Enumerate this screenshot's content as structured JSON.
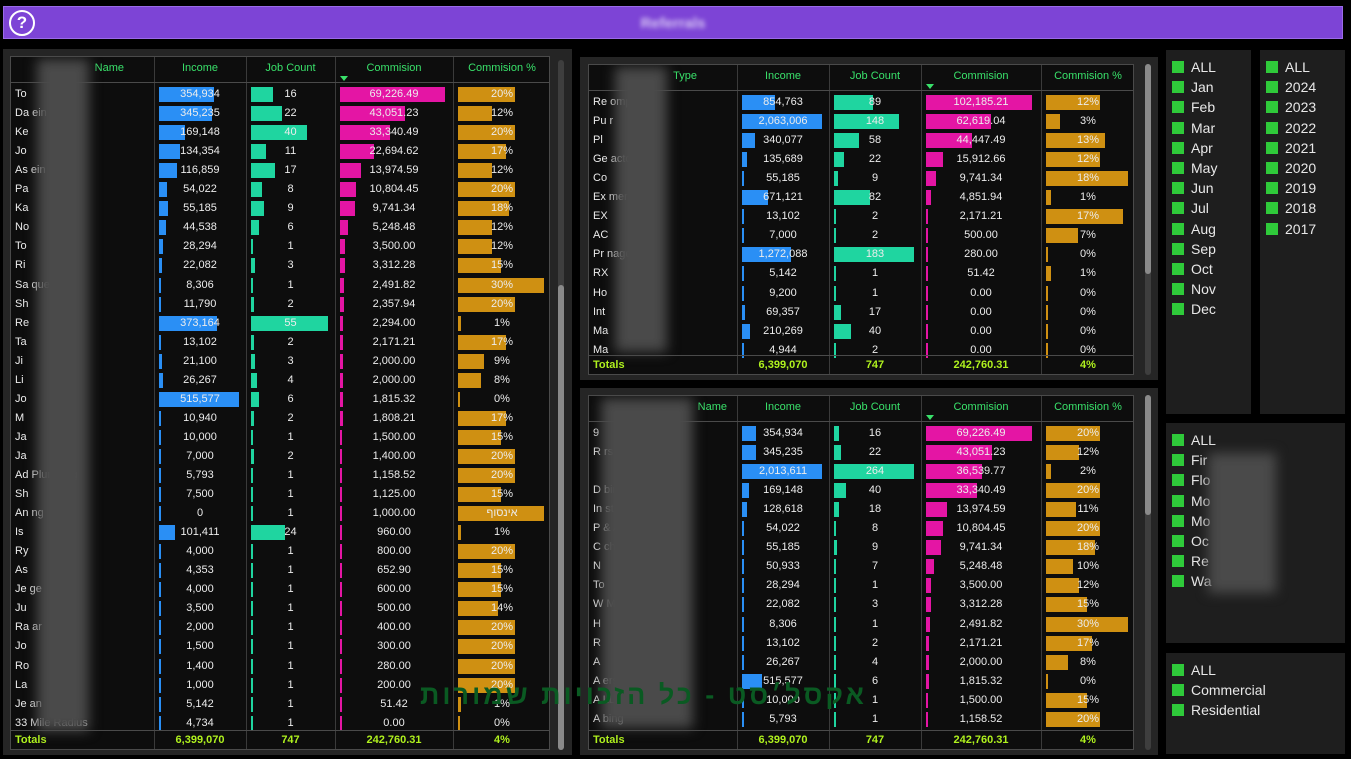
{
  "header": {
    "help_icon": "?",
    "title": "Referrals"
  },
  "columns": {
    "name": "Name",
    "type": "Type",
    "income": "Income",
    "job_count": "Job Count",
    "commission": "Commision",
    "commission_pct": "Commision %",
    "totals": "Totals"
  },
  "colors": {
    "income": "#2a8ff5",
    "job_count": "#1fd5a0",
    "commission": "#e415a4",
    "commission_pct": "#cf9012",
    "title_bar": "#7d44d6",
    "totals_text": "#b0f21e",
    "header_text": "#39e06a"
  },
  "table_left": {
    "label_header": "Name",
    "rows": [
      {
        "label": "To",
        "income": "354,934",
        "job_count": "16",
        "commission": "69,226.49",
        "pct": "20%"
      },
      {
        "label": "Da              ein",
        "income": "345,235",
        "job_count": "22",
        "commission": "43,051.23",
        "pct": "12%"
      },
      {
        "label": "Ke",
        "income": "169,148",
        "job_count": "40",
        "commission": "33,340.49",
        "pct": "20%"
      },
      {
        "label": "Jo",
        "income": "134,354",
        "job_count": "11",
        "commission": "22,694.62",
        "pct": "17%"
      },
      {
        "label": "As              ein",
        "income": "116,859",
        "job_count": "17",
        "commission": "13,974.59",
        "pct": "12%"
      },
      {
        "label": "Pa",
        "income": "54,022",
        "job_count": "8",
        "commission": "10,804.45",
        "pct": "20%"
      },
      {
        "label": "Ka",
        "income": "55,185",
        "job_count": "9",
        "commission": "9,741.34",
        "pct": "18%"
      },
      {
        "label": "No",
        "income": "44,538",
        "job_count": "6",
        "commission": "5,248.48",
        "pct": "12%"
      },
      {
        "label": "To",
        "income": "28,294",
        "job_count": "1",
        "commission": "3,500.00",
        "pct": "12%"
      },
      {
        "label": "Ri",
        "income": "22,082",
        "job_count": "3",
        "commission": "3,312.28",
        "pct": "15%"
      },
      {
        "label": "Sa              que",
        "income": "8,306",
        "job_count": "1",
        "commission": "2,491.82",
        "pct": "30%"
      },
      {
        "label": "Sh",
        "income": "11,790",
        "job_count": "2",
        "commission": "2,357.94",
        "pct": "20%"
      },
      {
        "label": "Re",
        "income": "373,164",
        "job_count": "55",
        "commission": "2,294.00",
        "pct": "1%"
      },
      {
        "label": "Ta",
        "income": "13,102",
        "job_count": "2",
        "commission": "2,171.21",
        "pct": "17%"
      },
      {
        "label": "Ji",
        "income": "21,100",
        "job_count": "3",
        "commission": "2,000.00",
        "pct": "9%"
      },
      {
        "label": "Li",
        "income": "26,267",
        "job_count": "4",
        "commission": "2,000.00",
        "pct": "8%"
      },
      {
        "label": "Jo",
        "income": "515,577",
        "job_count": "6",
        "commission": "1,815.32",
        "pct": "0%"
      },
      {
        "label": "M",
        "income": "10,940",
        "job_count": "2",
        "commission": "1,808.21",
        "pct": "17%"
      },
      {
        "label": "Ja",
        "income": "10,000",
        "job_count": "1",
        "commission": "1,500.00",
        "pct": "15%"
      },
      {
        "label": "Ja",
        "income": "7,000",
        "job_count": "2",
        "commission": "1,400.00",
        "pct": "20%"
      },
      {
        "label": "Ad              Plumbing",
        "income": "5,793",
        "job_count": "1",
        "commission": "1,158.52",
        "pct": "20%"
      },
      {
        "label": "Sh",
        "income": "7,500",
        "job_count": "1",
        "commission": "1,125.00",
        "pct": "15%"
      },
      {
        "label": "An              ng",
        "income": "0",
        "job_count": "1",
        "commission": "1,000.00",
        "pct": "אינסוף"
      },
      {
        "label": "Is",
        "income": "101,411",
        "job_count": "24",
        "commission": "960.00",
        "pct": "1%"
      },
      {
        "label": "Ry",
        "income": "4,000",
        "job_count": "1",
        "commission": "800.00",
        "pct": "20%"
      },
      {
        "label": "As",
        "income": "4,353",
        "job_count": "1",
        "commission": "652.90",
        "pct": "15%"
      },
      {
        "label": "Je              ge",
        "income": "4,000",
        "job_count": "1",
        "commission": "600.00",
        "pct": "15%"
      },
      {
        "label": "Ju",
        "income": "3,500",
        "job_count": "1",
        "commission": "500.00",
        "pct": "14%"
      },
      {
        "label": "Ra              ar",
        "income": "2,000",
        "job_count": "1",
        "commission": "400.00",
        "pct": "20%"
      },
      {
        "label": "Jo",
        "income": "1,500",
        "job_count": "1",
        "commission": "300.00",
        "pct": "20%"
      },
      {
        "label": "Ro",
        "income": "1,400",
        "job_count": "1",
        "commission": "280.00",
        "pct": "20%"
      },
      {
        "label": "La",
        "income": "1,000",
        "job_count": "1",
        "commission": "200.00",
        "pct": "20%"
      },
      {
        "label": "Je              an",
        "income": "5,142",
        "job_count": "1",
        "commission": "51.42",
        "pct": "1%"
      },
      {
        "label": "33 Mile Radius",
        "income": "4,734",
        "job_count": "1",
        "commission": "0.00",
        "pct": "0%"
      }
    ],
    "totals": {
      "label": "Totals",
      "income": "6,399,070",
      "job_count": "747",
      "commission": "242,760.31",
      "pct": "4%"
    }
  },
  "table_type": {
    "label_header": "Type",
    "rows": [
      {
        "label": "Re              ompany",
        "income": "854,763",
        "job_count": "89",
        "commission": "102,185.21",
        "pct": "12%"
      },
      {
        "label": "Pu              r",
        "income": "2,063,006",
        "job_count": "148",
        "commission": "62,619.04",
        "pct": "3%"
      },
      {
        "label": "Pl",
        "income": "340,077",
        "job_count": "58",
        "commission": "44,447.49",
        "pct": "13%"
      },
      {
        "label": "Ge              actor",
        "income": "135,689",
        "job_count": "22",
        "commission": "15,912.66",
        "pct": "12%"
      },
      {
        "label": "Co",
        "income": "55,185",
        "job_count": "9",
        "commission": "9,741.34",
        "pct": "18%"
      },
      {
        "label": "Ex              mer",
        "income": "671,121",
        "job_count": "82",
        "commission": "4,851.94",
        "pct": "1%"
      },
      {
        "label": "EX",
        "income": "13,102",
        "job_count": "2",
        "commission": "2,171.21",
        "pct": "17%"
      },
      {
        "label": "AC",
        "income": "7,000",
        "job_count": "2",
        "commission": "500.00",
        "pct": "7%"
      },
      {
        "label": "Pr              nager",
        "income": "1,272,088",
        "job_count": "183",
        "commission": "280.00",
        "pct": "0%"
      },
      {
        "label": "RX",
        "income": "5,142",
        "job_count": "1",
        "commission": "51.42",
        "pct": "1%"
      },
      {
        "label": "Ho",
        "income": "9,200",
        "job_count": "1",
        "commission": "0.00",
        "pct": "0%"
      },
      {
        "label": "Int",
        "income": "69,357",
        "job_count": "17",
        "commission": "0.00",
        "pct": "0%"
      },
      {
        "label": "Ma",
        "income": "210,269",
        "job_count": "40",
        "commission": "0.00",
        "pct": "0%"
      },
      {
        "label": "Ma",
        "income": "4,944",
        "job_count": "2",
        "commission": "0.00",
        "pct": "0%"
      }
    ],
    "totals": {
      "label": "Totals",
      "income": "6,399,070",
      "job_count": "747",
      "commission": "242,760.31",
      "pct": "4%"
    }
  },
  "table_group": {
    "label_header": "Name",
    "rows": [
      {
        "label": "9",
        "income": "354,934",
        "job_count": "16",
        "commission": "69,226.49",
        "pct": "20%"
      },
      {
        "label": "R              rs",
        "income": "345,235",
        "job_count": "22",
        "commission": "43,051.23",
        "pct": "12%"
      },
      {
        "label": "",
        "income": "2,013,611",
        "job_count": "264",
        "commission": "36,539.77",
        "pct": "2%"
      },
      {
        "label": "D              bing",
        "income": "169,148",
        "job_count": "40",
        "commission": "33,340.49",
        "pct": "20%"
      },
      {
        "label": "In              sters",
        "income": "128,618",
        "job_count": "18",
        "commission": "13,974.59",
        "pct": "11%"
      },
      {
        "label": "P              & Ass...",
        "income": "54,022",
        "job_count": "8",
        "commission": "10,804.45",
        "pct": "20%"
      },
      {
        "label": "C              cher",
        "income": "55,185",
        "job_count": "9",
        "commission": "9,741.34",
        "pct": "18%"
      },
      {
        "label": "N",
        "income": "50,933",
        "job_count": "7",
        "commission": "5,248.48",
        "pct": "10%"
      },
      {
        "label": "To",
        "income": "28,294",
        "job_count": "1",
        "commission": "3,500.00",
        "pct": "12%"
      },
      {
        "label": "W              Marke...",
        "income": "22,082",
        "job_count": "3",
        "commission": "3,312.28",
        "pct": "15%"
      },
      {
        "label": "H",
        "income": "8,306",
        "job_count": "1",
        "commission": "2,491.82",
        "pct": "30%"
      },
      {
        "label": "R",
        "income": "13,102",
        "job_count": "2",
        "commission": "2,171.21",
        "pct": "17%"
      },
      {
        "label": "A",
        "income": "26,267",
        "job_count": "4",
        "commission": "2,000.00",
        "pct": "8%"
      },
      {
        "label": "A              ers",
        "income": "515,577",
        "job_count": "6",
        "commission": "1,815.32",
        "pct": "0%"
      },
      {
        "label": "A              LLC",
        "income": "10,000",
        "job_count": "1",
        "commission": "1,500.00",
        "pct": "15%"
      },
      {
        "label": "A              bing",
        "income": "5,793",
        "job_count": "1",
        "commission": "1,158.52",
        "pct": "20%"
      }
    ],
    "totals": {
      "label": "Totals",
      "income": "6,399,070",
      "job_count": "747",
      "commission": "242,760.31",
      "pct": "4%"
    }
  },
  "slicer_months": [
    "ALL",
    "Jan",
    "Feb",
    "Mar",
    "Apr",
    "May",
    "Jun",
    "Jul",
    "Aug",
    "Sep",
    "Oct",
    "Nov",
    "Dec"
  ],
  "slicer_years": [
    "ALL",
    "2024",
    "2023",
    "2022",
    "2021",
    "2020",
    "2019",
    "2018",
    "2017"
  ],
  "slicer_categories": [
    "ALL",
    "Fir",
    "Flo",
    "Mo",
    "Mo",
    "Oc",
    "Re",
    "Wa"
  ],
  "slicer_segments": [
    "ALL",
    "Commercial",
    "Residential"
  ],
  "watermark": "אקסל׳סט - כל הזכויות שמורות"
}
